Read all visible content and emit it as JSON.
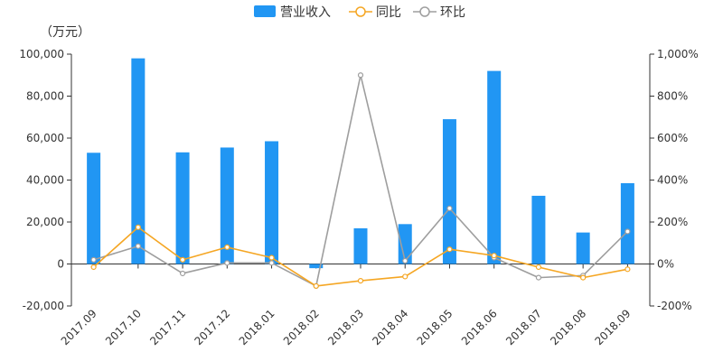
{
  "chart_data": {
    "type": "bar",
    "unit_label": "（万元）",
    "categories": [
      "2017.09",
      "2017.10",
      "2017.11",
      "2017.12",
      "2018.01",
      "2018.02",
      "2018.03",
      "2018.04",
      "2018.05",
      "2018.06",
      "2018.07",
      "2018.08",
      "2018.09"
    ],
    "series": [
      {
        "name": "营业收入",
        "type": "bar",
        "axis": "left",
        "color": "#2196F3",
        "values": [
          53000,
          98000,
          53200,
          55500,
          58500,
          -2000,
          17000,
          19000,
          69000,
          92000,
          32500,
          15000,
          38500
        ]
      },
      {
        "name": "同比",
        "type": "line",
        "axis": "right",
        "color": "#F5A623",
        "values": [
          -15,
          175,
          20,
          80,
          30,
          -105,
          -80,
          -60,
          70,
          40,
          -15,
          -65,
          -25
        ]
      },
      {
        "name": "环比",
        "type": "line",
        "axis": "right",
        "color": "#9E9E9E",
        "values": [
          20,
          85,
          -45,
          5,
          5,
          -105,
          900,
          15,
          265,
          30,
          -65,
          -55,
          155
        ]
      }
    ],
    "y_left": {
      "min": -20000,
      "max": 100000,
      "step": 20000,
      "ticks": [
        "-20,000",
        "0",
        "20,000",
        "40,000",
        "60,000",
        "80,000",
        "100,000"
      ]
    },
    "y_right": {
      "min": -200,
      "max": 1000,
      "step": 200,
      "ticks": [
        "-200%",
        "0%",
        "200%",
        "400%",
        "600%",
        "800%",
        "1,000%"
      ]
    },
    "legend_position": "top-center",
    "grid": false
  }
}
